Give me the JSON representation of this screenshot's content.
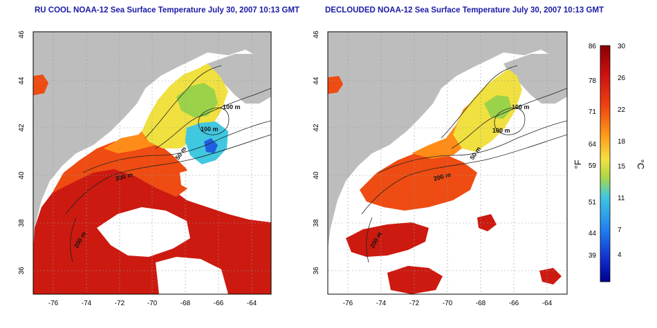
{
  "panels": [
    {
      "title": "RU COOL NOAA-12 Sea Surface Temperature July 30, 2007 10:13 GMT"
    },
    {
      "title": "DECLOUDED NOAA-12 Sea Surface Temperature July 30, 2007 10:13 GMT"
    }
  ],
  "axes": {
    "lat_ticks": [
      "46",
      "44",
      "42",
      "40",
      "38",
      "36"
    ],
    "lon_ticks": [
      "-76",
      "-74",
      "-72",
      "-70",
      "-68",
      "-66",
      "-64"
    ]
  },
  "contours": {
    "left": [
      "100 m",
      "100 m",
      "50 m",
      "200 m",
      "200 m"
    ],
    "right": [
      "100 m",
      "100 m",
      "50 m",
      "200 m",
      "200 m"
    ]
  },
  "colorbar": {
    "f_label": "°F",
    "c_label": "°C",
    "f_ticks": [
      "86",
      "78",
      "71",
      "64",
      "59",
      "51",
      "44",
      "39"
    ],
    "c_ticks": [
      "30",
      "26",
      "22",
      "18",
      "15",
      "11",
      "7",
      "4"
    ]
  },
  "colors": {
    "land": "#bdbdbd",
    "cloud": "#ffffff",
    "title": "#1a1aa6",
    "warm_red": "#cc1010",
    "orange_red": "#ee4010",
    "orange": "#ff8c18",
    "yellow": "#f0e040",
    "green": "#9ad24a",
    "cyan": "#40c8e0",
    "blue": "#2060e0"
  }
}
